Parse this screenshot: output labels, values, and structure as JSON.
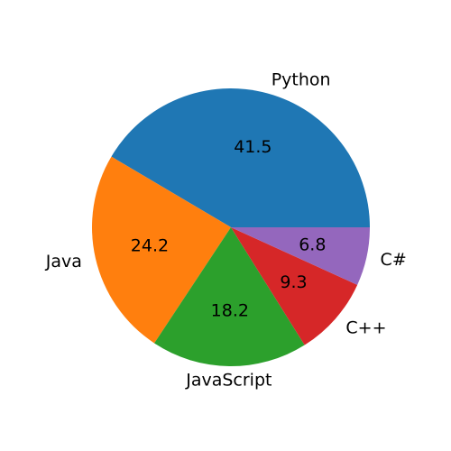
{
  "chart_data": {
    "type": "pie",
    "title": "",
    "categories": [
      "Python",
      "Java",
      "JavaScript",
      "C++",
      "C#"
    ],
    "values": [
      41.5,
      24.2,
      18.2,
      9.3,
      6.8
    ],
    "percent_labels": [
      "41.5",
      "24.2",
      "18.2",
      "9.3",
      "6.8"
    ],
    "colors": [
      "#1f77b4",
      "#ff7f0e",
      "#2ca02c",
      "#d62728",
      "#9467bd"
    ],
    "start_angle_deg": 0,
    "direction": "counterclockwise",
    "legend": "none"
  }
}
